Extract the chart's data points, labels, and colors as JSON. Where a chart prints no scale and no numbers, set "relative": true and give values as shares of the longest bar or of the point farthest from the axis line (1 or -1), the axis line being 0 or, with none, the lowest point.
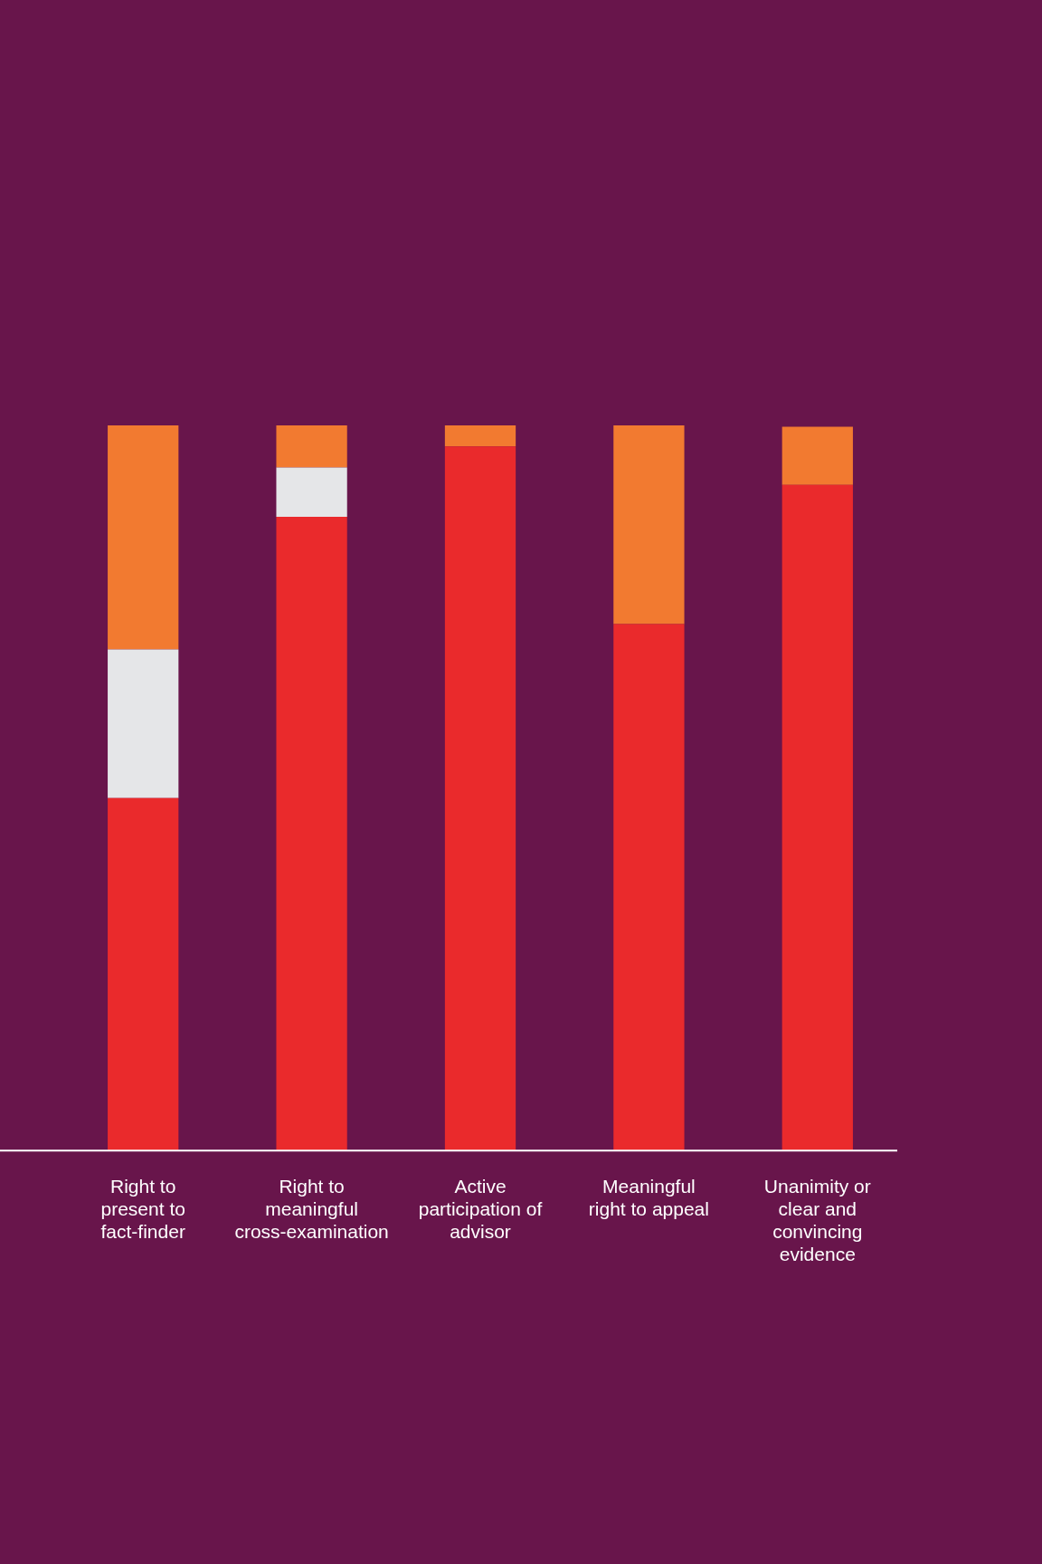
{
  "chart_data": {
    "type": "bar",
    "stacked": true,
    "relative": true,
    "grid": false,
    "legend": false,
    "categories": [
      "Right to present to fact-finder",
      "Right to meaningful cross-examination",
      "Active participation of advisor",
      "Meaningful right to appeal",
      "Unanimity or clear and convincing evidence"
    ],
    "series": [
      {
        "color": "#ea2a2c",
        "values": [
          0.486,
          0.874,
          0.971,
          0.726,
          0.918
        ]
      },
      {
        "color": "#e5e6e8",
        "values": [
          0.205,
          0.068,
          null,
          null,
          null
        ]
      },
      {
        "color": "#f27a30",
        "values": [
          0.309,
          0.058,
          0.029,
          0.274,
          0.08
        ]
      }
    ]
  }
}
